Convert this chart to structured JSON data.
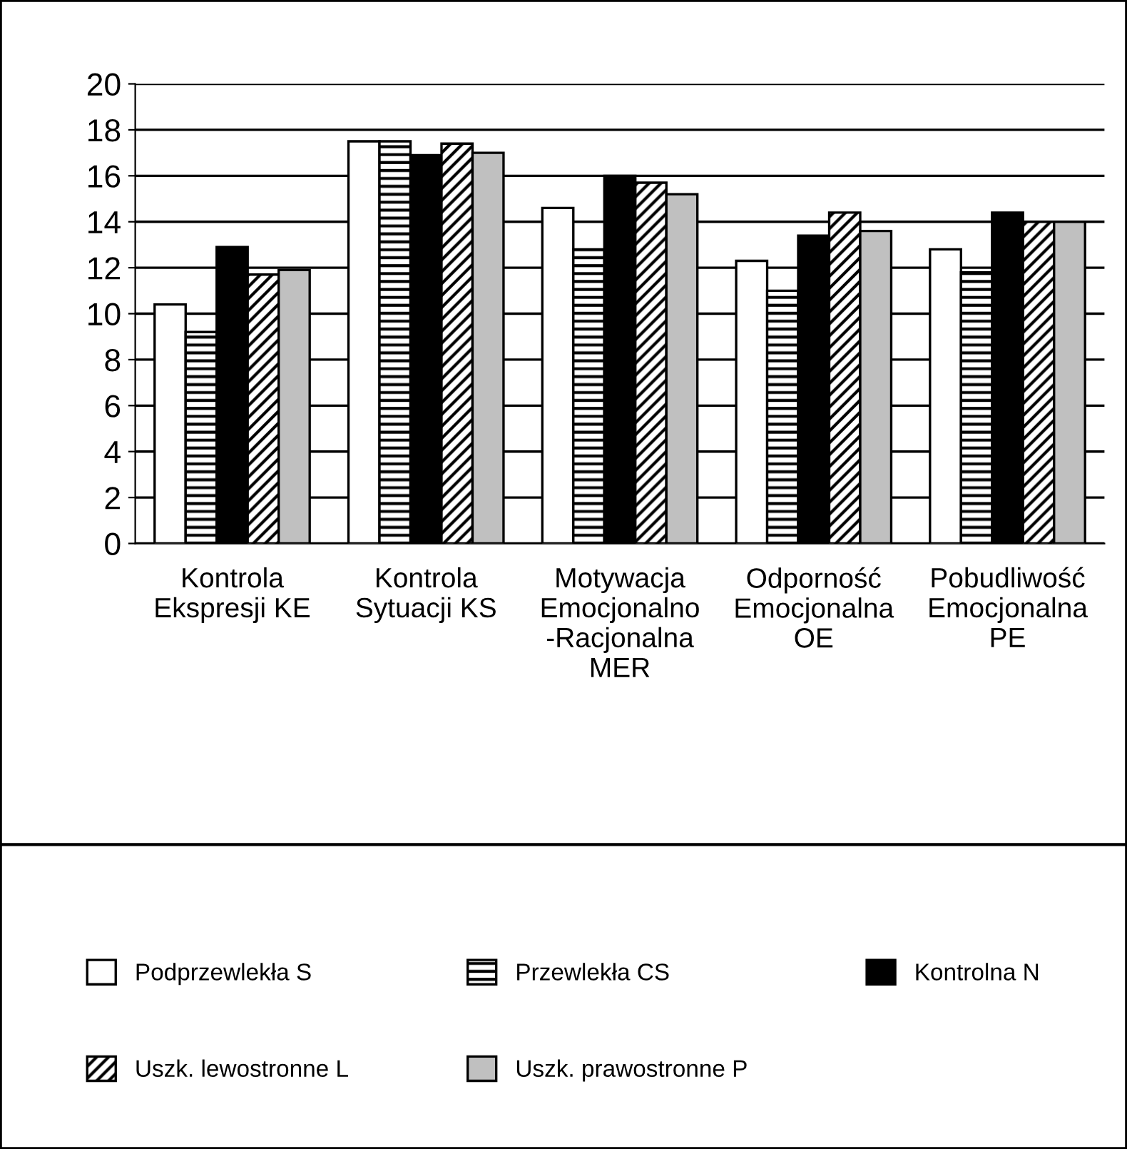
{
  "chart_data": {
    "type": "bar",
    "categories": [
      "Kontrola Ekspresji KE",
      "Kontrola Sytuacji KS",
      "Motywacja Emocjonalno -Racjonalna MER",
      "Odporność Emocjonalna OE",
      "Pobudliwość Emocjonalna PE"
    ],
    "series": [
      {
        "name": "Podprzewlekła S",
        "color": "#ffffff",
        "values": [
          10.4,
          17.5,
          14.6,
          12.3,
          12.8
        ]
      },
      {
        "name": "Przewlekła CS",
        "color": "#000000",
        "values": [
          9.2,
          17.5,
          12.8,
          11.0,
          11.8
        ]
      },
      {
        "name": "Kontrolna N",
        "color": "#000000",
        "values": [
          12.9,
          16.9,
          16.0,
          13.4,
          14.4
        ]
      },
      {
        "name": "Uszk. lewostronne L",
        "color": "#000000",
        "values": [
          11.7,
          17.4,
          15.7,
          14.4,
          14.0
        ]
      },
      {
        "name": "Uszk. prawostronne P",
        "color": "#c0c0c0",
        "values": [
          11.9,
          17.0,
          15.2,
          13.6,
          14.0
        ]
      }
    ],
    "ylim": [
      0,
      20
    ],
    "yticks": [
      0,
      2,
      4,
      6,
      8,
      10,
      12,
      14,
      16,
      18,
      20
    ],
    "grid": "y",
    "legend": "bottom"
  }
}
